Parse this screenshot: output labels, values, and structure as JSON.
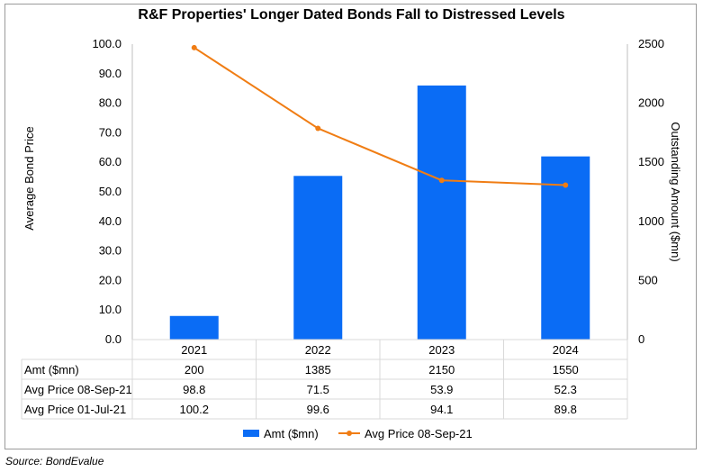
{
  "title": "R&F Properties' Longer Dated Bonds Fall to Distressed Levels",
  "source": "Source: BondEvalue",
  "chart_data": {
    "type": "bar",
    "categories": [
      "2021",
      "2022",
      "2023",
      "2024"
    ],
    "ylabel": "Average Bond Price",
    "y2label": "Outstanding Amount ($mn)",
    "ylim": [
      0,
      100
    ],
    "y2lim": [
      0,
      2500
    ],
    "yticks": [
      "0.0",
      "10.0",
      "20.0",
      "30.0",
      "40.0",
      "50.0",
      "60.0",
      "70.0",
      "80.0",
      "90.0",
      "100.0"
    ],
    "y2ticks": [
      "0",
      "500",
      "1000",
      "1500",
      "2000",
      "2500"
    ],
    "grid": false,
    "legend_position": "bottom",
    "bar_series": {
      "name": "Amt ($mn)",
      "axis": "right",
      "color": "#0a6cf5",
      "values": [
        200,
        1385,
        2150,
        1550
      ]
    },
    "line_series": {
      "name": "Avg Price 08-Sep-21",
      "axis": "left",
      "color": "#f07d14",
      "values": [
        98.8,
        71.5,
        53.9,
        52.3
      ]
    },
    "table": {
      "rows": [
        {
          "label": "Amt ($mn)",
          "values": [
            "200",
            "1385",
            "2150",
            "1550"
          ]
        },
        {
          "label": "Avg Price 08-Sep-21",
          "values": [
            "98.8",
            "71.5",
            "53.9",
            "52.3"
          ]
        },
        {
          "label": "Avg Price 01-Jul-21",
          "values": [
            "100.2",
            "99.6",
            "94.1",
            "89.8"
          ]
        }
      ]
    }
  }
}
